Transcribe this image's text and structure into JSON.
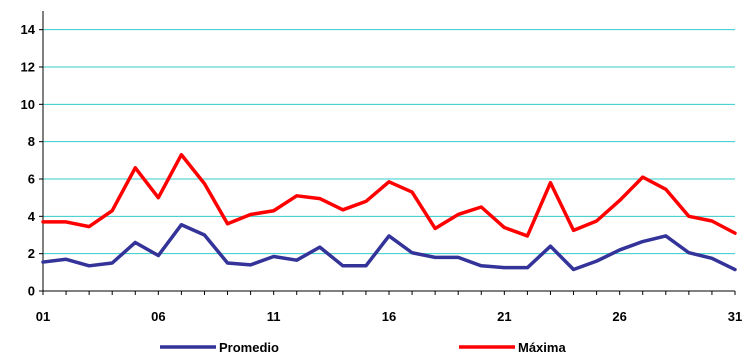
{
  "chart_data": {
    "type": "line",
    "title": "",
    "xlabel": "",
    "ylabel": "",
    "x_tick_labels": [
      "01",
      "06",
      "11",
      "16",
      "21",
      "26",
      "31"
    ],
    "ylim": [
      0,
      15
    ],
    "y_ticks": [
      0,
      2,
      4,
      6,
      8,
      10,
      12,
      14
    ],
    "grid": true,
    "grid_color": "#33CCCC",
    "legend_position": "bottom",
    "days": [
      1,
      2,
      3,
      4,
      5,
      6,
      7,
      8,
      9,
      10,
      11,
      12,
      13,
      14,
      15,
      16,
      17,
      18,
      19,
      20,
      21,
      22,
      23,
      24,
      25,
      26,
      27,
      28,
      29,
      30,
      31
    ],
    "series": [
      {
        "name": "Promedio",
        "color": "#333399",
        "values": [
          1.55,
          1.7,
          1.35,
          1.5,
          2.6,
          1.9,
          3.55,
          3.0,
          1.5,
          1.4,
          1.85,
          1.65,
          2.35,
          1.35,
          1.35,
          2.95,
          2.05,
          1.8,
          1.8,
          1.35,
          1.25,
          1.25,
          2.4,
          1.15,
          1.6,
          2.2,
          2.65,
          2.95,
          2.05,
          1.75,
          1.15
        ]
      },
      {
        "name": "Máxima",
        "color": "#FF0000",
        "values": [
          3.7,
          3.7,
          3.45,
          4.3,
          6.6,
          5.0,
          7.3,
          5.75,
          3.6,
          4.1,
          4.3,
          5.1,
          4.95,
          4.35,
          4.8,
          5.85,
          5.3,
          3.35,
          4.1,
          4.5,
          3.4,
          2.95,
          5.8,
          3.25,
          3.75,
          4.85,
          6.1,
          5.45,
          4.0,
          3.75,
          3.1
        ]
      }
    ]
  }
}
